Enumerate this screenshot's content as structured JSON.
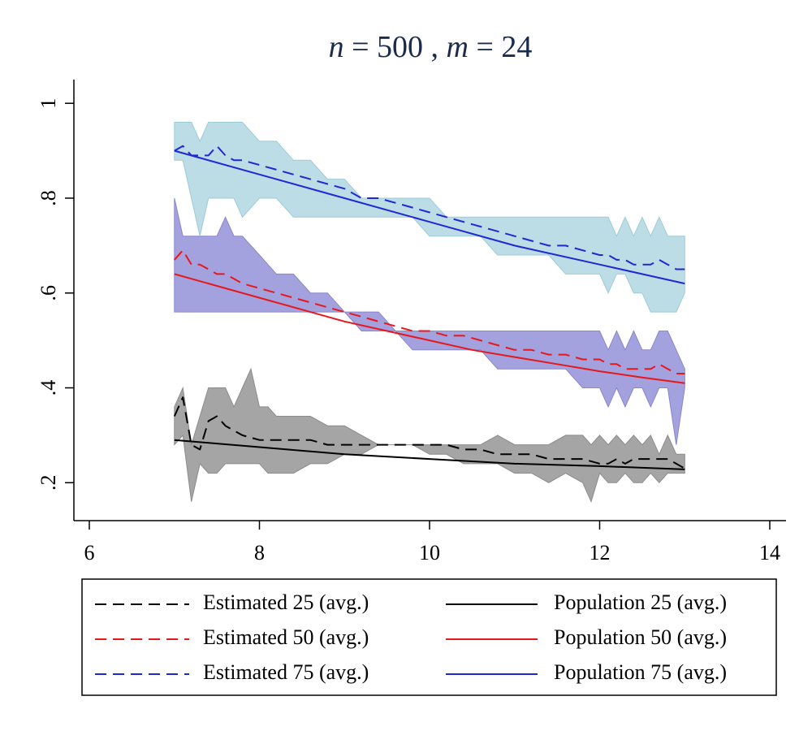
{
  "chart_data": {
    "type": "line",
    "title": {
      "n_var": "n",
      "eq1": " = 500 , ",
      "m_var": "m",
      "eq2": " = 24"
    },
    "xlim": [
      6,
      14
    ],
    "ylim": [
      0.12,
      1.05
    ],
    "x_ticks": [
      6,
      8,
      10,
      12,
      14
    ],
    "x_tick_labels": [
      "6",
      "8",
      "10",
      "12",
      "14"
    ],
    "y_ticks": [
      0.2,
      0.4,
      0.6,
      0.8,
      1.0
    ],
    "y_tick_labels": [
      ".2",
      ".4",
      ".6",
      ".8",
      "1"
    ],
    "colors": {
      "est25": "#000000",
      "est50": "#e8171b",
      "est75": "#1f28d6",
      "pop25": "#000000",
      "pop50": "#e8171b",
      "pop75": "#1f28d6",
      "band25_fill": "#a5a5a5",
      "band25_stroke": "#8c8c8c",
      "band50_fill": "#a4a2de",
      "band50_stroke": "#8986cc",
      "band75_fill": "#bcdde6",
      "band75_stroke": "#9ccbd9"
    },
    "bands": [
      {
        "name": "band-25",
        "x": [
          7.0,
          7.1,
          7.2,
          7.3,
          7.4,
          7.5,
          7.6,
          7.7,
          7.8,
          7.9,
          8.0,
          8.1,
          8.2,
          8.4,
          8.6,
          8.8,
          9.0,
          9.2,
          9.4,
          9.6,
          9.8,
          10.0,
          10.2,
          10.4,
          10.6,
          10.8,
          11.0,
          11.2,
          11.4,
          11.6,
          11.8,
          11.9,
          12.0,
          12.1,
          12.2,
          12.3,
          12.4,
          12.5,
          12.6,
          12.7,
          12.8,
          12.9,
          13.0
        ],
        "upper": [
          0.36,
          0.4,
          0.28,
          0.34,
          0.4,
          0.4,
          0.4,
          0.36,
          0.4,
          0.44,
          0.36,
          0.36,
          0.34,
          0.34,
          0.34,
          0.32,
          0.32,
          0.3,
          0.28,
          0.28,
          0.28,
          0.28,
          0.28,
          0.28,
          0.28,
          0.3,
          0.28,
          0.28,
          0.28,
          0.3,
          0.3,
          0.28,
          0.3,
          0.28,
          0.3,
          0.28,
          0.3,
          0.28,
          0.3,
          0.26,
          0.3,
          0.26,
          0.26
        ],
        "lower": [
          0.28,
          0.3,
          0.16,
          0.24,
          0.22,
          0.22,
          0.24,
          0.24,
          0.24,
          0.24,
          0.24,
          0.22,
          0.22,
          0.22,
          0.24,
          0.24,
          0.26,
          0.26,
          0.28,
          0.28,
          0.28,
          0.26,
          0.26,
          0.24,
          0.24,
          0.24,
          0.22,
          0.22,
          0.2,
          0.22,
          0.2,
          0.16,
          0.22,
          0.2,
          0.2,
          0.22,
          0.2,
          0.2,
          0.22,
          0.2,
          0.22,
          0.22,
          0.22
        ]
      },
      {
        "name": "band-50",
        "x": [
          7.0,
          7.1,
          7.2,
          7.3,
          7.4,
          7.5,
          7.6,
          7.7,
          7.8,
          8.0,
          8.2,
          8.4,
          8.6,
          8.8,
          9.0,
          9.2,
          9.4,
          9.6,
          9.8,
          10.0,
          10.2,
          10.4,
          10.6,
          10.8,
          11.0,
          11.2,
          11.4,
          11.6,
          11.8,
          12.0,
          12.1,
          12.2,
          12.3,
          12.4,
          12.5,
          12.6,
          12.7,
          12.8,
          12.9,
          13.0
        ],
        "upper": [
          0.8,
          0.72,
          0.72,
          0.72,
          0.72,
          0.72,
          0.76,
          0.72,
          0.72,
          0.68,
          0.64,
          0.64,
          0.6,
          0.6,
          0.56,
          0.56,
          0.56,
          0.52,
          0.52,
          0.52,
          0.52,
          0.52,
          0.52,
          0.52,
          0.52,
          0.52,
          0.52,
          0.52,
          0.52,
          0.52,
          0.48,
          0.52,
          0.48,
          0.52,
          0.48,
          0.48,
          0.52,
          0.52,
          0.48,
          0.44
        ],
        "lower": [
          0.56,
          0.56,
          0.56,
          0.56,
          0.56,
          0.56,
          0.56,
          0.56,
          0.56,
          0.56,
          0.56,
          0.56,
          0.56,
          0.56,
          0.56,
          0.52,
          0.52,
          0.52,
          0.48,
          0.48,
          0.48,
          0.48,
          0.48,
          0.44,
          0.44,
          0.44,
          0.44,
          0.44,
          0.4,
          0.4,
          0.36,
          0.4,
          0.36,
          0.4,
          0.4,
          0.36,
          0.4,
          0.4,
          0.28,
          0.4
        ]
      },
      {
        "name": "band-75",
        "x": [
          7.0,
          7.1,
          7.2,
          7.3,
          7.4,
          7.5,
          7.6,
          7.7,
          7.8,
          8.0,
          8.2,
          8.4,
          8.6,
          8.8,
          9.0,
          9.2,
          9.4,
          9.6,
          9.8,
          10.0,
          10.2,
          10.4,
          10.6,
          10.8,
          11.0,
          11.2,
          11.4,
          11.6,
          11.8,
          12.0,
          12.1,
          12.2,
          12.3,
          12.4,
          12.5,
          12.6,
          12.7,
          12.8,
          12.9,
          13.0
        ],
        "upper": [
          0.96,
          0.96,
          0.96,
          0.92,
          0.96,
          0.96,
          0.96,
          0.96,
          0.96,
          0.92,
          0.92,
          0.88,
          0.88,
          0.84,
          0.84,
          0.8,
          0.8,
          0.8,
          0.8,
          0.8,
          0.76,
          0.76,
          0.76,
          0.76,
          0.76,
          0.76,
          0.76,
          0.76,
          0.76,
          0.76,
          0.76,
          0.72,
          0.76,
          0.72,
          0.76,
          0.72,
          0.76,
          0.72,
          0.72,
          0.72
        ],
        "lower": [
          0.88,
          0.88,
          0.8,
          0.72,
          0.8,
          0.8,
          0.8,
          0.8,
          0.76,
          0.8,
          0.8,
          0.76,
          0.76,
          0.76,
          0.76,
          0.76,
          0.76,
          0.76,
          0.76,
          0.72,
          0.72,
          0.72,
          0.72,
          0.68,
          0.68,
          0.68,
          0.68,
          0.64,
          0.64,
          0.64,
          0.6,
          0.64,
          0.64,
          0.6,
          0.6,
          0.56,
          0.56,
          0.56,
          0.56,
          0.6
        ]
      }
    ],
    "series": [
      {
        "name": "Estimated 25 (avg.)",
        "key": "est25",
        "style": "dashed",
        "x": [
          7.0,
          7.1,
          7.2,
          7.3,
          7.4,
          7.5,
          7.6,
          7.7,
          7.8,
          8.0,
          8.2,
          8.4,
          8.6,
          8.8,
          9.0,
          9.2,
          9.4,
          9.6,
          9.8,
          10.0,
          10.2,
          10.4,
          10.6,
          10.8,
          11.0,
          11.2,
          11.4,
          11.6,
          11.8,
          12.0,
          12.1,
          12.2,
          12.3,
          12.4,
          12.5,
          12.6,
          12.7,
          12.8,
          12.9,
          13.0
        ],
        "values": [
          0.34,
          0.38,
          0.28,
          0.27,
          0.33,
          0.34,
          0.32,
          0.31,
          0.3,
          0.29,
          0.29,
          0.29,
          0.29,
          0.28,
          0.28,
          0.28,
          0.28,
          0.28,
          0.28,
          0.28,
          0.28,
          0.27,
          0.27,
          0.26,
          0.26,
          0.26,
          0.25,
          0.25,
          0.25,
          0.24,
          0.24,
          0.25,
          0.24,
          0.25,
          0.25,
          0.25,
          0.25,
          0.25,
          0.24,
          0.23
        ]
      },
      {
        "name": "Estimated 50 (avg.)",
        "key": "est50",
        "style": "dashed",
        "x": [
          7.0,
          7.1,
          7.2,
          7.3,
          7.4,
          7.5,
          7.6,
          7.7,
          7.8,
          8.0,
          8.2,
          8.4,
          8.6,
          8.8,
          9.0,
          9.2,
          9.4,
          9.6,
          9.8,
          10.0,
          10.2,
          10.4,
          10.6,
          10.8,
          11.0,
          11.2,
          11.4,
          11.6,
          11.8,
          12.0,
          12.1,
          12.2,
          12.3,
          12.4,
          12.5,
          12.6,
          12.7,
          12.8,
          12.9,
          13.0
        ],
        "values": [
          0.67,
          0.69,
          0.66,
          0.66,
          0.65,
          0.64,
          0.64,
          0.63,
          0.62,
          0.61,
          0.6,
          0.59,
          0.58,
          0.57,
          0.56,
          0.55,
          0.54,
          0.53,
          0.52,
          0.52,
          0.51,
          0.51,
          0.5,
          0.49,
          0.48,
          0.48,
          0.47,
          0.47,
          0.46,
          0.46,
          0.45,
          0.45,
          0.44,
          0.44,
          0.44,
          0.44,
          0.45,
          0.44,
          0.43,
          0.43
        ]
      },
      {
        "name": "Estimated 75 (avg.)",
        "key": "est75",
        "style": "dashed",
        "x": [
          7.0,
          7.1,
          7.2,
          7.3,
          7.4,
          7.5,
          7.6,
          7.7,
          7.8,
          8.0,
          8.2,
          8.4,
          8.6,
          8.8,
          9.0,
          9.2,
          9.4,
          9.6,
          9.8,
          10.0,
          10.2,
          10.4,
          10.6,
          10.8,
          11.0,
          11.2,
          11.4,
          11.6,
          11.8,
          12.0,
          12.1,
          12.2,
          12.3,
          12.4,
          12.5,
          12.6,
          12.7,
          12.8,
          12.9,
          13.0
        ],
        "values": [
          0.9,
          0.91,
          0.89,
          0.89,
          0.89,
          0.91,
          0.89,
          0.88,
          0.88,
          0.87,
          0.86,
          0.85,
          0.84,
          0.83,
          0.82,
          0.8,
          0.8,
          0.79,
          0.78,
          0.77,
          0.76,
          0.75,
          0.74,
          0.73,
          0.72,
          0.71,
          0.7,
          0.7,
          0.69,
          0.68,
          0.68,
          0.67,
          0.67,
          0.66,
          0.66,
          0.66,
          0.67,
          0.66,
          0.65,
          0.65
        ]
      },
      {
        "name": "Population 25 (avg.)",
        "key": "pop25",
        "style": "solid",
        "x": [
          7.0,
          8.0,
          9.0,
          10.0,
          11.0,
          12.0,
          13.0
        ],
        "values": [
          0.29,
          0.275,
          0.26,
          0.25,
          0.24,
          0.235,
          0.228
        ]
      },
      {
        "name": "Population 50 (avg.)",
        "key": "pop50",
        "style": "solid",
        "x": [
          7.0,
          7.5,
          8.0,
          8.5,
          9.0,
          9.5,
          10.0,
          10.5,
          11.0,
          11.5,
          12.0,
          12.5,
          13.0
        ],
        "values": [
          0.64,
          0.615,
          0.59,
          0.565,
          0.54,
          0.52,
          0.5,
          0.48,
          0.465,
          0.45,
          0.435,
          0.422,
          0.41
        ]
      },
      {
        "name": "Population 75 (avg.)",
        "key": "pop75",
        "style": "solid",
        "x": [
          7.0,
          8.0,
          9.0,
          10.0,
          11.0,
          12.0,
          13.0
        ],
        "values": [
          0.9,
          0.85,
          0.8,
          0.75,
          0.7,
          0.66,
          0.62
        ]
      }
    ],
    "legend": [
      {
        "label": "Estimated 25 (avg.)",
        "key": "est25",
        "style": "dashed"
      },
      {
        "label": "Population 25 (avg.)",
        "key": "pop25",
        "style": "solid"
      },
      {
        "label": "Estimated 50 (avg.)",
        "key": "est50",
        "style": "dashed"
      },
      {
        "label": "Population 50 (avg.)",
        "key": "pop50",
        "style": "solid"
      },
      {
        "label": "Estimated 75 (avg.)",
        "key": "est75",
        "style": "dashed"
      },
      {
        "label": "Population 75 (avg.)",
        "key": "pop75",
        "style": "solid"
      }
    ],
    "legend_position": "bottom",
    "grid": false
  }
}
